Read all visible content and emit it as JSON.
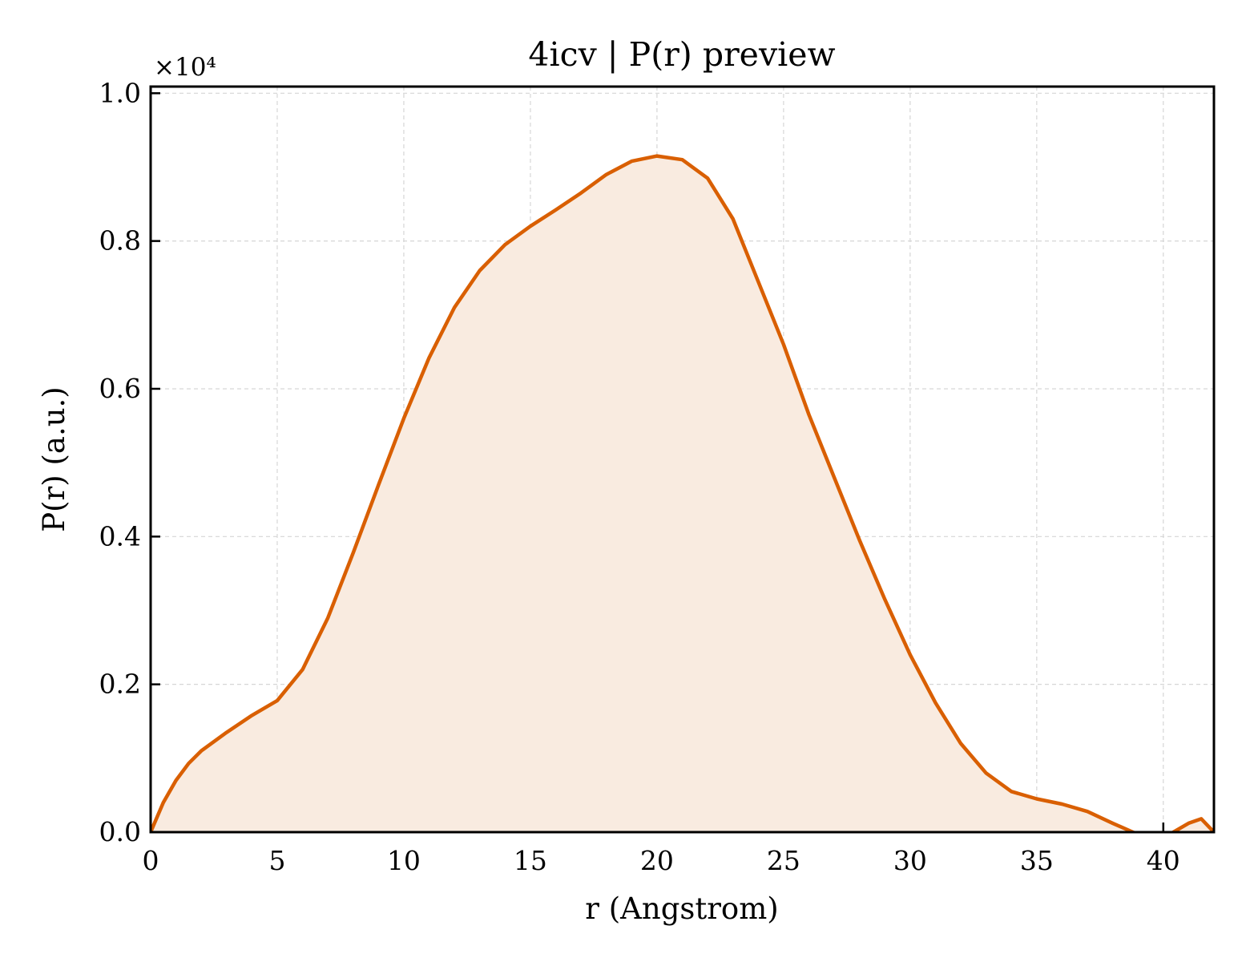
{
  "chart_data": {
    "type": "line",
    "title": "4icv | P(r) preview",
    "x_label": "r (Angstrom)",
    "y_label": "P(r) (a.u.)",
    "y_offset_label": "×10⁴",
    "x": [
      0,
      0.5,
      1,
      1.5,
      2,
      3,
      4,
      5,
      6,
      7,
      8,
      9,
      10,
      11,
      12,
      13,
      14,
      15,
      16,
      17,
      18,
      19,
      20,
      21,
      22,
      23,
      24,
      25,
      26,
      27,
      28,
      29,
      30,
      31,
      32,
      33,
      34,
      35,
      36,
      37,
      38,
      38.8,
      39.5,
      40,
      40.4,
      41,
      41.5,
      42
    ],
    "series": [
      {
        "name": "P(r)",
        "color": "#d95f02",
        "fill": "#f9ebe0",
        "values": [
          0,
          400,
          700,
          930,
          1100,
          1350,
          1580,
          1780,
          2200,
          2900,
          3780,
          4700,
          5600,
          6420,
          7100,
          7600,
          7950,
          8200,
          8420,
          8650,
          8900,
          9080,
          9150,
          9100,
          8850,
          8300,
          7450,
          6600,
          5650,
          4800,
          3950,
          3150,
          2400,
          1750,
          1200,
          800,
          550,
          450,
          380,
          280,
          120,
          0,
          -100,
          -80,
          0,
          120,
          180,
          0
        ]
      }
    ],
    "xlim": [
      0,
      42
    ],
    "xticks": [
      0,
      5,
      10,
      15,
      20,
      25,
      30,
      35,
      40
    ],
    "ylim": [
      0,
      10090
    ],
    "yticks": [
      {
        "value": 0,
        "label": "0.0"
      },
      {
        "value": 2000,
        "label": "0.2"
      },
      {
        "value": 4000,
        "label": "0.4"
      },
      {
        "value": 6000,
        "label": "0.6"
      },
      {
        "value": 8000,
        "label": "0.8"
      },
      {
        "value": 10000,
        "label": "1.0"
      }
    ],
    "grid": true
  }
}
